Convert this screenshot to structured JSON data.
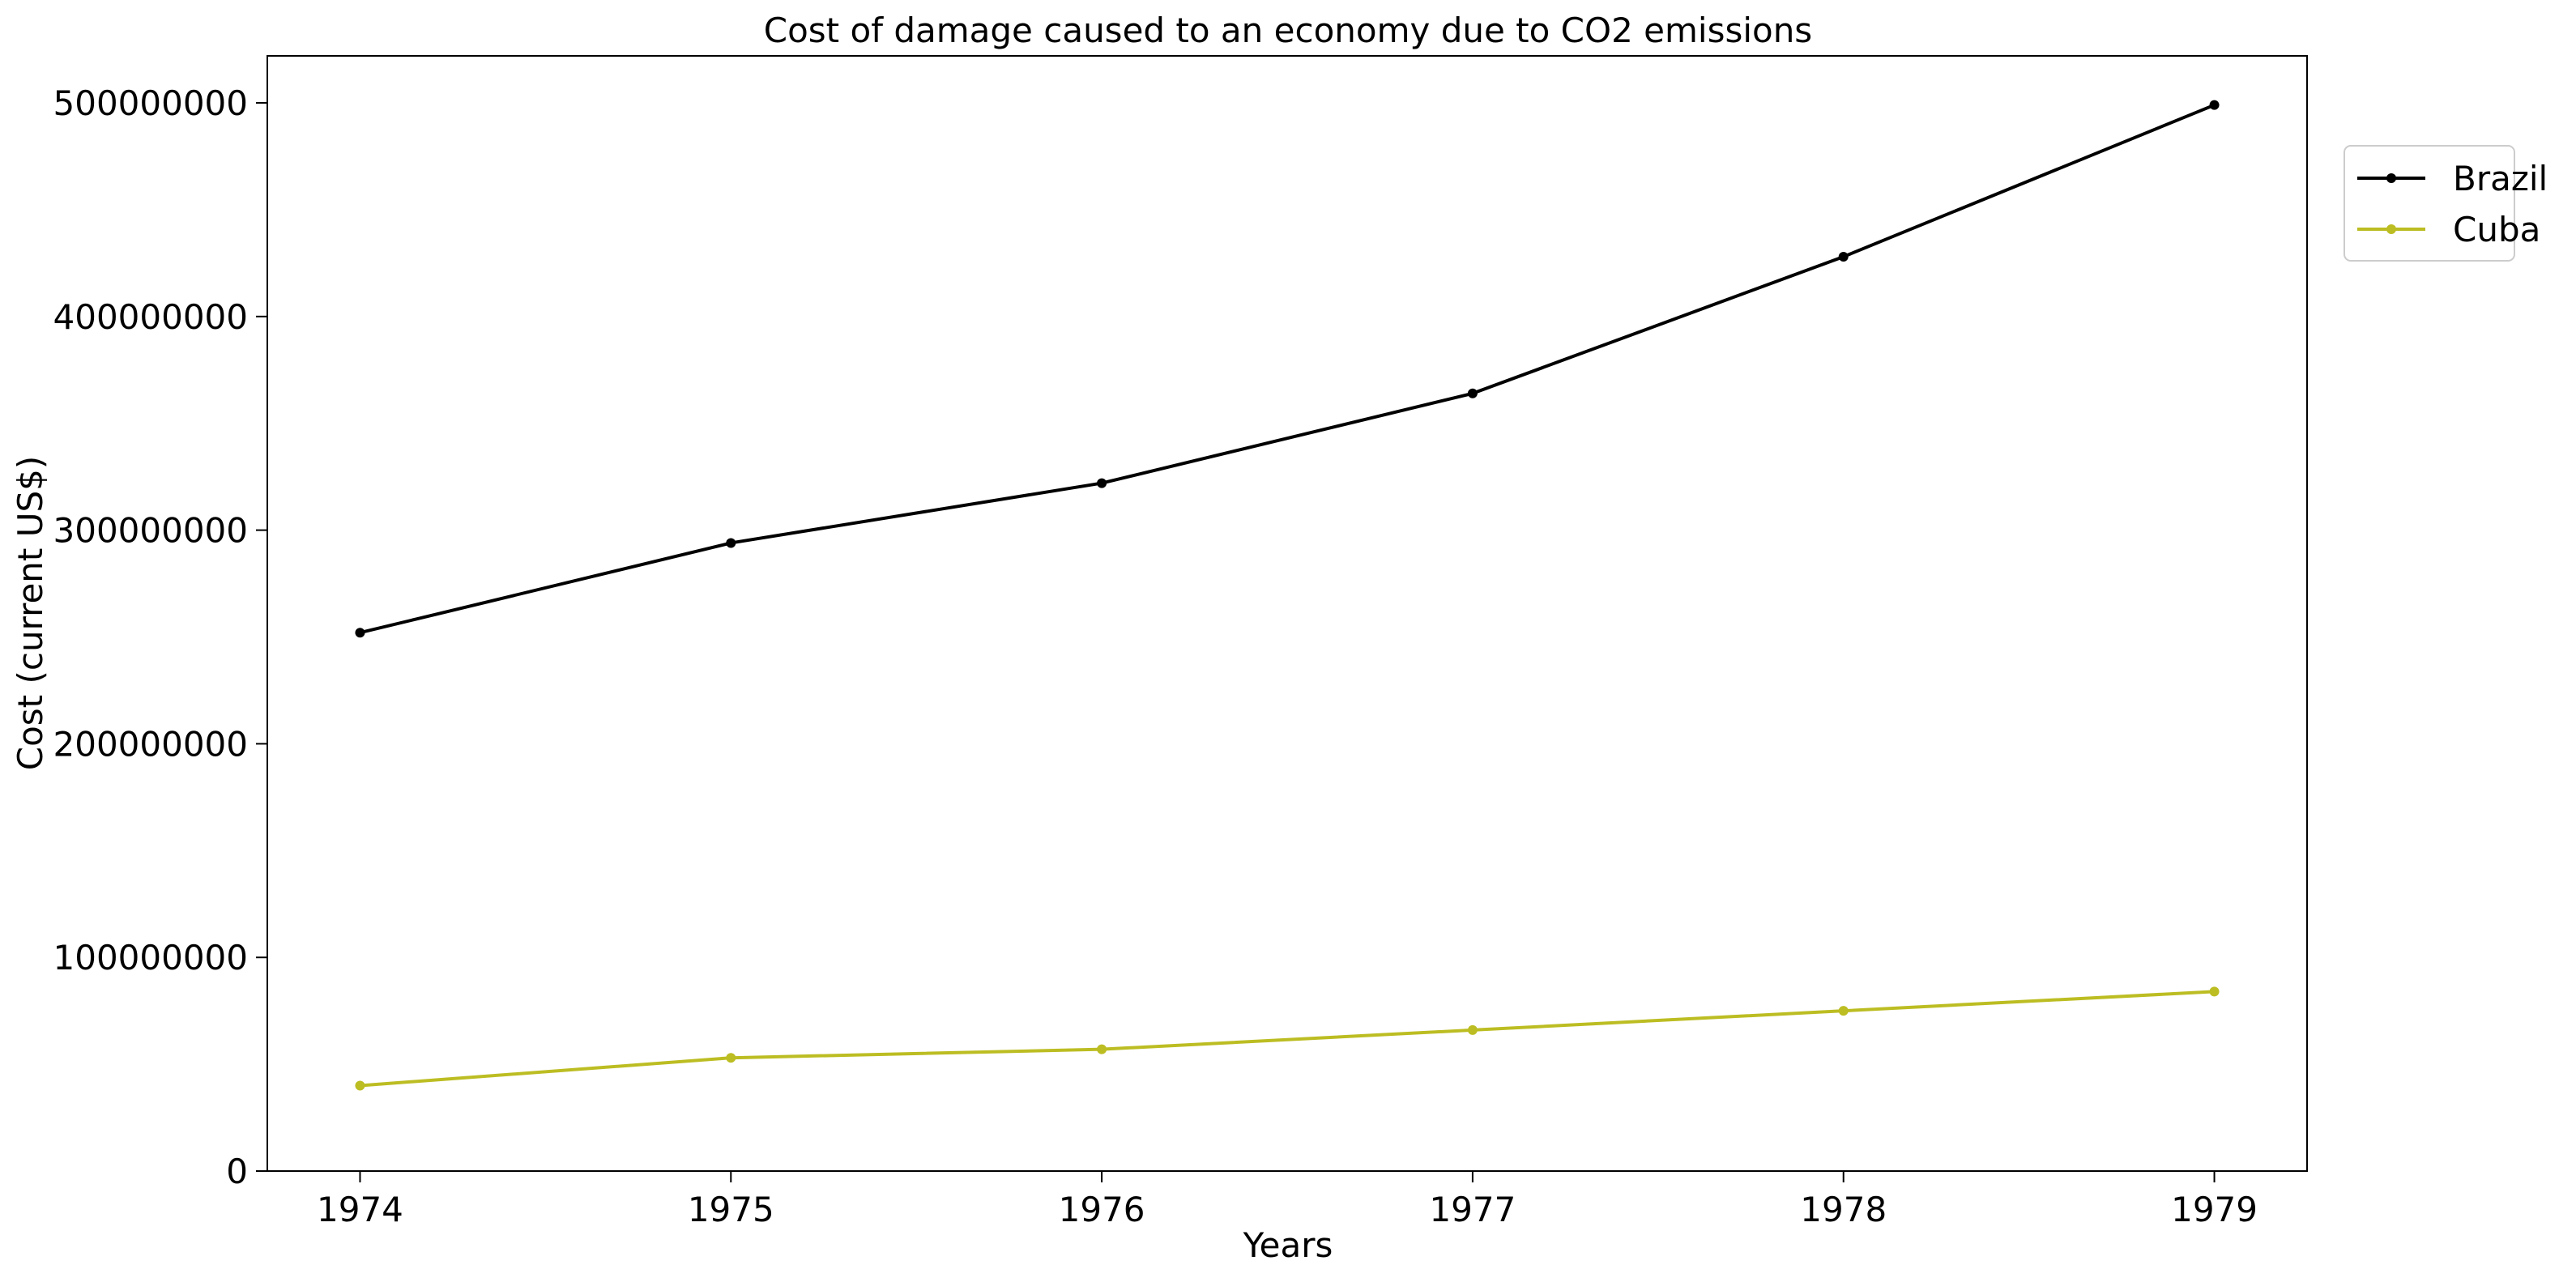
{
  "chart_data": {
    "type": "line",
    "title": "Cost of damage caused to an economy due to CO2 emissions",
    "xlabel": "Years",
    "ylabel": "Cost (current US$)",
    "x": [
      "1974",
      "1975",
      "1976",
      "1977",
      "1978",
      "1979"
    ],
    "xlim": [
      1973.75,
      1979.25
    ],
    "ylim": [
      0,
      522000000
    ],
    "yticks": [
      0,
      100000000,
      200000000,
      300000000,
      400000000,
      500000000
    ],
    "ytick_labels": [
      "0",
      "100000000",
      "200000000",
      "300000000",
      "400000000",
      "500000000"
    ],
    "grid": false,
    "legend_position": "right, outside plot",
    "series": [
      {
        "name": "Brazil",
        "color": "#000000",
        "marker": "dot",
        "values": [
          252000000,
          294000000,
          322000000,
          364000000,
          428000000,
          499000000
        ]
      },
      {
        "name": "Cuba",
        "color": "#bcbd22",
        "marker": "dot",
        "values": [
          40000000,
          53000000,
          57000000,
          66000000,
          75000000,
          84000000
        ]
      }
    ]
  }
}
